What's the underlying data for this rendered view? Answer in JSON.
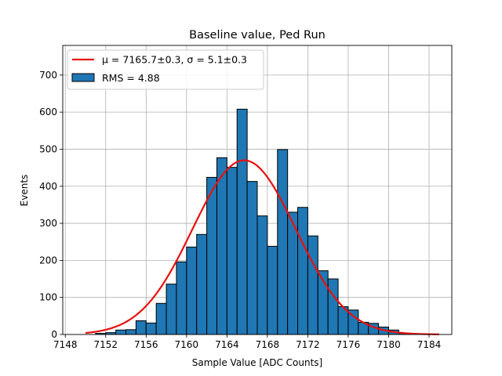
{
  "chart_data": {
    "type": "bar",
    "title": "Baseline value, Ped Run",
    "xlabel": "Sample Value [ADC Counts]",
    "ylabel": "Events",
    "xlim": [
      7147.75,
      7186.25
    ],
    "ylim": [
      0,
      780
    ],
    "xticks": [
      7148,
      7152,
      7156,
      7160,
      7164,
      7168,
      7172,
      7176,
      7180,
      7184
    ],
    "yticks": [
      0,
      100,
      200,
      300,
      400,
      500,
      600,
      700
    ],
    "grid": true,
    "legend_position": "top-left",
    "bin_width": 1,
    "histogram": {
      "name": "RMS = 4.88",
      "color": "#1f77b4",
      "bin_left_edges": [
        7151,
        7152,
        7153,
        7154,
        7155,
        7156,
        7157,
        7158,
        7159,
        7160,
        7161,
        7162,
        7163,
        7164,
        7165,
        7166,
        7167,
        7168,
        7169,
        7170,
        7171,
        7172,
        7173,
        7174,
        7175,
        7176,
        7177,
        7178,
        7179,
        7180,
        7181
      ],
      "counts": [
        3,
        5,
        12,
        13,
        37,
        31,
        84,
        136,
        196,
        236,
        270,
        424,
        477,
        451,
        608,
        413,
        320,
        238,
        499,
        330,
        343,
        266,
        172,
        150,
        75,
        66,
        33,
        30,
        20,
        12,
        3
      ]
    },
    "fit": {
      "name": "$\\mu = 7165.7\\pm0.3$, $\\sigma = 5.1\\pm0.3$",
      "label_mu": "μ = 7165.7±0.3",
      "label_sigma": "σ = 5.1±0.3",
      "color": "#e8110f",
      "x_range": [
        7150,
        7185
      ],
      "amplitude": 470,
      "mu": 7165.7,
      "sigma": 5.1
    }
  }
}
